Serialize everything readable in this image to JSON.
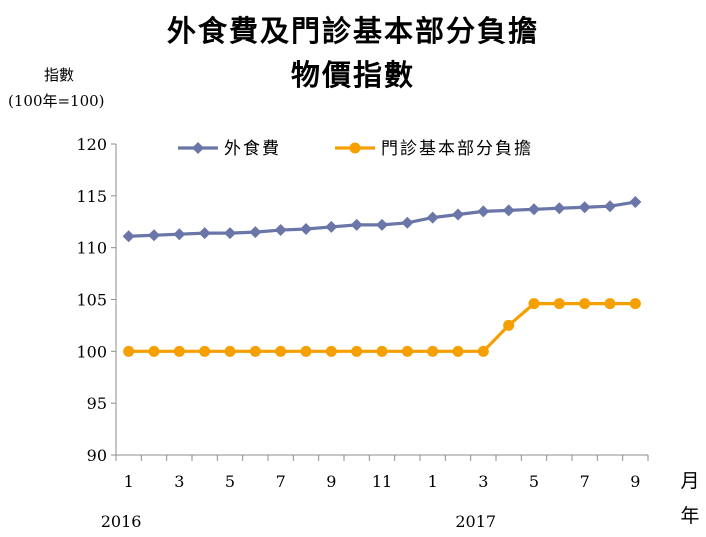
{
  "chart_data": {
    "type": "line",
    "title": "外食費及門診基本部分負擔",
    "subtitle": "物價指數",
    "ylabel_line1": "指數",
    "ylabel_line2": "(100年=100)",
    "xaxis_month_label": "月",
    "xaxis_year_label": "年",
    "ylim": [
      90,
      120
    ],
    "yticks": [
      "90",
      "95",
      "100",
      "105",
      "110",
      "115",
      "120"
    ],
    "x_tick_labels": [
      "1",
      "",
      "3",
      "",
      "5",
      "",
      "7",
      "",
      "9",
      "",
      "11",
      "",
      "1",
      "",
      "3",
      "",
      "5",
      "",
      "7",
      "",
      "9"
    ],
    "year_labels": [
      {
        "label": "2016",
        "index": 0
      },
      {
        "label": "2017",
        "index": 14
      }
    ],
    "grid": false,
    "legend": "top",
    "x": [
      "2016-1",
      "2016-2",
      "2016-3",
      "2016-4",
      "2016-5",
      "2016-6",
      "2016-7",
      "2016-8",
      "2016-9",
      "2016-10",
      "2016-11",
      "2016-12",
      "2017-1",
      "2017-2",
      "2017-3",
      "2017-4",
      "2017-5",
      "2017-6",
      "2017-7",
      "2017-8",
      "2017-9"
    ],
    "series": [
      {
        "name": "外食費",
        "color": "#6a75a8",
        "marker": "diamond",
        "values": [
          111.1,
          111.2,
          111.3,
          111.4,
          111.4,
          111.5,
          111.7,
          111.8,
          112.0,
          112.2,
          112.2,
          112.4,
          112.9,
          113.2,
          113.5,
          113.6,
          113.7,
          113.8,
          113.9,
          114.0,
          114.4
        ]
      },
      {
        "name": "門診基本部分負擔",
        "color": "#f5a000",
        "marker": "circle",
        "values": [
          100,
          100,
          100,
          100,
          100,
          100,
          100,
          100,
          100,
          100,
          100,
          100,
          100,
          100,
          100,
          102.5,
          104.6,
          104.6,
          104.6,
          104.6,
          104.6
        ]
      }
    ]
  }
}
